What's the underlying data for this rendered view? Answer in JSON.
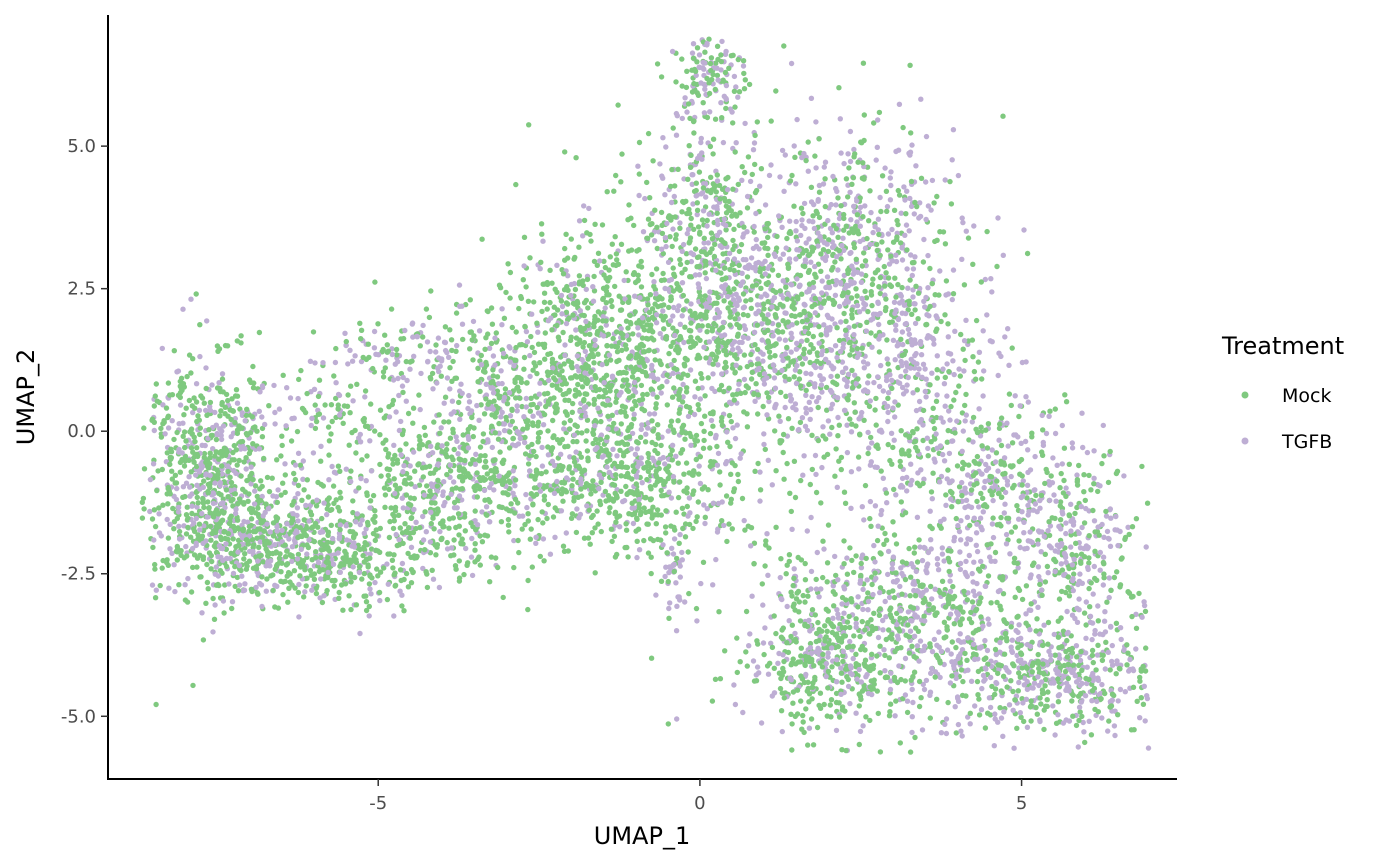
{
  "chart_data": {
    "type": "scatter",
    "title": "",
    "xlabel": "UMAP_1",
    "ylabel": "UMAP_2",
    "xlim": [
      -9.2,
      7.4
    ],
    "ylim": [
      -6.1,
      7.3
    ],
    "x_ticks": [
      -5,
      0,
      5
    ],
    "x_tick_labels": [
      "-5",
      "0",
      "5"
    ],
    "y_ticks": [
      -5.0,
      -2.5,
      0.0,
      2.5,
      5.0
    ],
    "y_tick_labels": [
      "-5.0",
      "-2.5",
      "0.0",
      "2.5",
      "5.0"
    ],
    "grid": false,
    "legend": {
      "title": "Treatment",
      "position": "right"
    },
    "series": [
      {
        "name": "Mock",
        "color": "#7fc97f"
      },
      {
        "name": "TGFB",
        "color": "#beaed4"
      }
    ],
    "regions": [
      {
        "cx": -7.6,
        "cy": -0.6,
        "sx": 0.55,
        "sy": 1.0,
        "n": 650,
        "mock": 0.65
      },
      {
        "cx": -7.0,
        "cy": -1.8,
        "sx": 0.7,
        "sy": 0.55,
        "n": 350,
        "mock": 0.65
      },
      {
        "cx": -5.8,
        "cy": -2.2,
        "sx": 1.0,
        "sy": 0.45,
        "n": 450,
        "mock": 0.7
      },
      {
        "cx": -4.2,
        "cy": -1.1,
        "sx": 1.0,
        "sy": 0.7,
        "n": 450,
        "mock": 0.72
      },
      {
        "cx": -2.9,
        "cy": 0.3,
        "sx": 1.1,
        "sy": 1.0,
        "n": 600,
        "mock": 0.68
      },
      {
        "cx": -1.3,
        "cy": 1.3,
        "sx": 0.9,
        "sy": 1.2,
        "n": 900,
        "mock": 0.78
      },
      {
        "cx": -0.9,
        "cy": -1.0,
        "sx": 1.0,
        "sy": 0.55,
        "n": 400,
        "mock": 0.8
      },
      {
        "cx": 0.1,
        "cy": 3.9,
        "sx": 0.55,
        "sy": 0.9,
        "n": 300,
        "mock": 0.62
      },
      {
        "cx": 0.1,
        "cy": 6.2,
        "sx": 0.25,
        "sy": 0.4,
        "n": 140,
        "mock": 0.45
      },
      {
        "cx": 1.0,
        "cy": 1.8,
        "sx": 0.9,
        "sy": 1.1,
        "n": 800,
        "mock": 0.55
      },
      {
        "cx": 2.4,
        "cy": 3.6,
        "sx": 0.8,
        "sy": 0.9,
        "n": 400,
        "mock": 0.45
      },
      {
        "cx": 3.0,
        "cy": 1.2,
        "sx": 0.8,
        "sy": 1.1,
        "n": 500,
        "mock": 0.45
      },
      {
        "cx": 4.4,
        "cy": -0.8,
        "sx": 0.8,
        "sy": 0.8,
        "n": 350,
        "mock": 0.5
      },
      {
        "cx": 5.7,
        "cy": -2.2,
        "sx": 0.6,
        "sy": 0.9,
        "n": 350,
        "mock": 0.45
      },
      {
        "cx": 3.0,
        "cy": -3.4,
        "sx": 1.2,
        "sy": 0.9,
        "n": 850,
        "mock": 0.55
      },
      {
        "cx": 5.6,
        "cy": -4.3,
        "sx": 0.8,
        "sy": 0.5,
        "n": 450,
        "mock": 0.5
      },
      {
        "cx": 1.8,
        "cy": -4.1,
        "sx": 0.5,
        "sy": 0.5,
        "n": 200,
        "mock": 0.75
      },
      {
        "cx": -0.4,
        "cy": -2.4,
        "sx": 0.1,
        "sy": 0.4,
        "n": 40,
        "mock": 0.2
      },
      {
        "cx": -4.8,
        "cy": 1.4,
        "sx": 0.5,
        "sy": 0.3,
        "n": 80,
        "mock": 0.4
      },
      {
        "cx": -5.9,
        "cy": 0.4,
        "sx": 0.4,
        "sy": 0.4,
        "n": 60,
        "mock": 0.6
      }
    ]
  }
}
